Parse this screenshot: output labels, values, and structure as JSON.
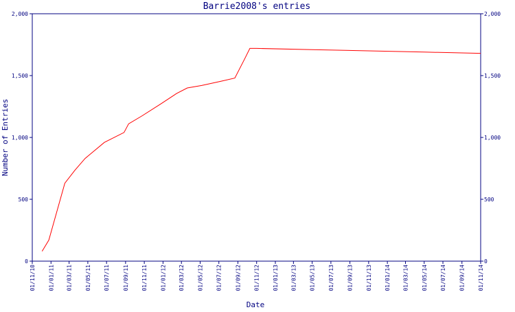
{
  "chart_data": {
    "type": "line",
    "title": "Barrie2008's entries",
    "xlabel": "Date",
    "ylabel": "Number of Entries",
    "ylim": [
      0,
      2000
    ],
    "y_ticks": [
      0,
      500,
      1000,
      1500,
      2000
    ],
    "y_tick_labels": [
      "0",
      "500",
      "1,000",
      "1,500",
      "2,000"
    ],
    "y_axis_both_sides": true,
    "grid": false,
    "x_start": "2010-11-01",
    "x_end": "2014-11-01",
    "x_ticks": [
      {
        "label": "01/11/10",
        "date": "2010-11-01"
      },
      {
        "label": "01/01/11",
        "date": "2011-01-01"
      },
      {
        "label": "01/03/11",
        "date": "2011-03-01"
      },
      {
        "label": "01/05/11",
        "date": "2011-05-01"
      },
      {
        "label": "01/07/11",
        "date": "2011-07-01"
      },
      {
        "label": "01/09/11",
        "date": "2011-09-01"
      },
      {
        "label": "01/11/11",
        "date": "2011-11-01"
      },
      {
        "label": "01/01/12",
        "date": "2012-01-01"
      },
      {
        "label": "01/03/12",
        "date": "2012-03-01"
      },
      {
        "label": "01/05/12",
        "date": "2012-05-01"
      },
      {
        "label": "01/07/12",
        "date": "2012-07-01"
      },
      {
        "label": "01/09/12",
        "date": "2012-09-01"
      },
      {
        "label": "01/11/12",
        "date": "2012-11-01"
      },
      {
        "label": "01/01/13",
        "date": "2013-01-01"
      },
      {
        "label": "01/03/13",
        "date": "2013-03-01"
      },
      {
        "label": "01/05/13",
        "date": "2013-05-01"
      },
      {
        "label": "01/07/13",
        "date": "2013-07-01"
      },
      {
        "label": "01/09/13",
        "date": "2013-09-01"
      },
      {
        "label": "01/11/13",
        "date": "2013-11-01"
      },
      {
        "label": "01/01/14",
        "date": "2014-01-01"
      },
      {
        "label": "01/03/14",
        "date": "2014-03-01"
      },
      {
        "label": "01/05/14",
        "date": "2014-05-01"
      },
      {
        "label": "01/07/14",
        "date": "2014-07-01"
      },
      {
        "label": "01/09/14",
        "date": "2014-09-01"
      },
      {
        "label": "01/11/14",
        "date": "2014-11-01"
      }
    ],
    "series": [
      {
        "color": "#ff0000",
        "points": [
          {
            "x": "2010-12-03",
            "y": 80
          },
          {
            "x": "2010-12-25",
            "y": 170
          },
          {
            "x": "2011-02-15",
            "y": 630
          },
          {
            "x": "2011-03-20",
            "y": 735
          },
          {
            "x": "2011-04-22",
            "y": 830
          },
          {
            "x": "2011-06-24",
            "y": 960
          },
          {
            "x": "2011-08-27",
            "y": 1040
          },
          {
            "x": "2011-09-11",
            "y": 1110
          },
          {
            "x": "2011-10-25",
            "y": 1175
          },
          {
            "x": "2011-12-24",
            "y": 1270
          },
          {
            "x": "2012-02-14",
            "y": 1355
          },
          {
            "x": "2012-03-20",
            "y": 1400
          },
          {
            "x": "2012-05-06",
            "y": 1420
          },
          {
            "x": "2012-07-09",
            "y": 1455
          },
          {
            "x": "2012-08-22",
            "y": 1480
          },
          {
            "x": "2012-09-23",
            "y": 1635
          },
          {
            "x": "2012-10-10",
            "y": 1720
          },
          {
            "x": "2012-11-01",
            "y": 1720
          },
          {
            "x": "2013-05-01",
            "y": 1710
          },
          {
            "x": "2013-11-01",
            "y": 1700
          },
          {
            "x": "2014-05-01",
            "y": 1690
          },
          {
            "x": "2014-11-01",
            "y": 1680
          }
        ]
      }
    ]
  }
}
